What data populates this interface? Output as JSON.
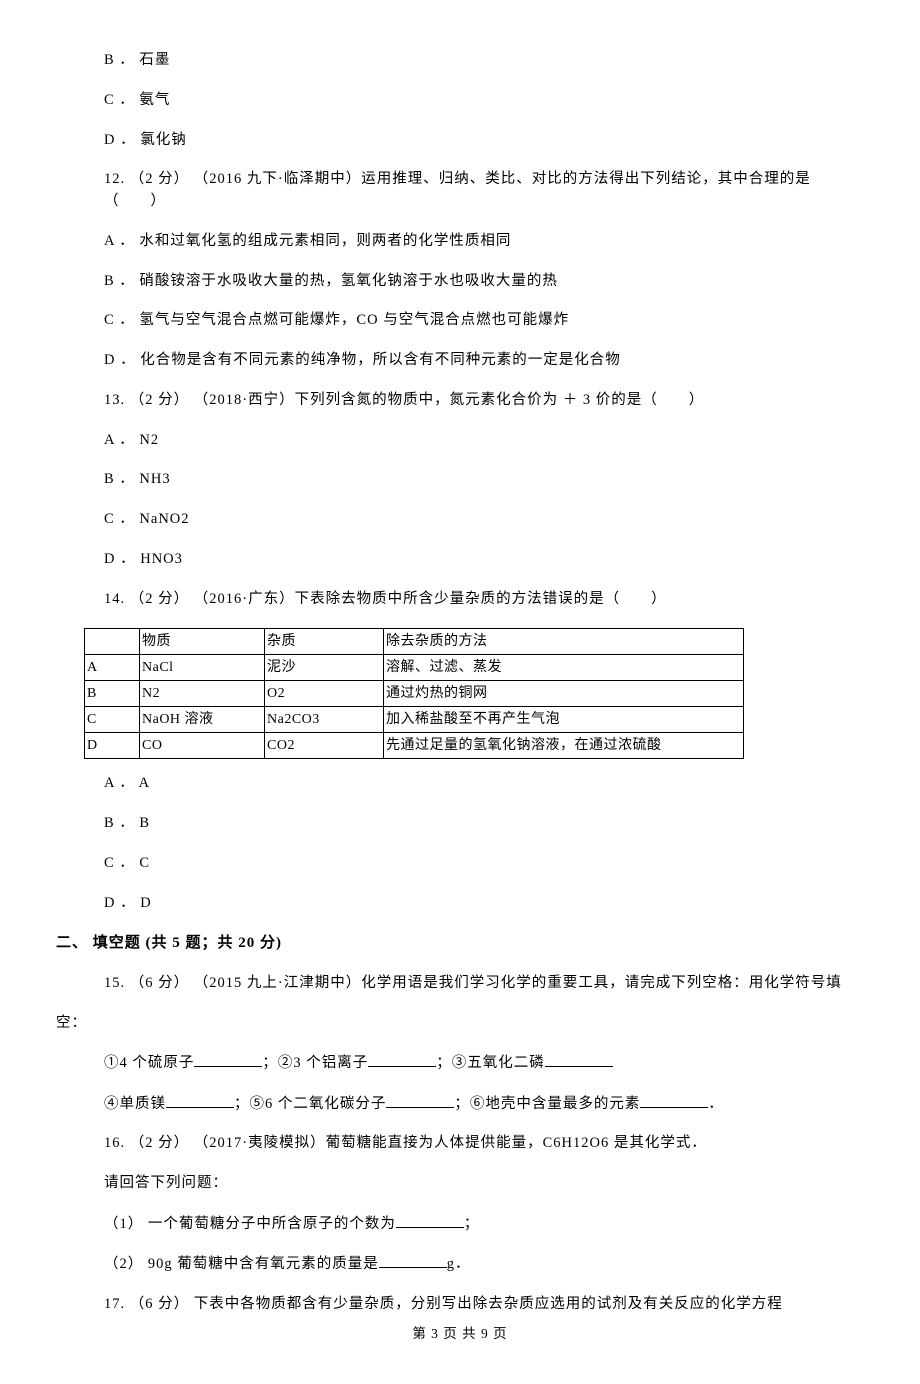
{
  "q11": {
    "opt_b": "B ． 石墨",
    "opt_c": "C ． 氨气",
    "opt_d": "D ． 氯化钠"
  },
  "q12": {
    "stem": "12.  （2 分） （2016 九下·临泽期中）运用推理、归纳、类比、对比的方法得出下列结论，其中合理的是（　　）",
    "opt_a": "A ． 水和过氧化氢的组成元素相同，则两者的化学性质相同",
    "opt_b": "B ． 硝酸铵溶于水吸收大量的热，氢氧化钠溶于水也吸收大量的热",
    "opt_c": "C ． 氢气与空气混合点燃可能爆炸，CO 与空气混合点燃也可能爆炸",
    "opt_d": "D ． 化合物是含有不同元素的纯净物，所以含有不同种元素的一定是化合物"
  },
  "q13": {
    "stem": "13.  （2 分） （2018·西宁）下列列含氮的物质中，氮元素化合价为 ＋ 3 价的是（　　）",
    "opt_a": "A ． N2",
    "opt_b": "B ． NH3",
    "opt_c": "C ． NaNO2",
    "opt_d": "D ． HNO3"
  },
  "q14": {
    "stem": "14.  （2 分） （2016·广东）下表除去物质中所含少量杂质的方法错误的是（　　）",
    "table": {
      "headers": [
        "",
        "物质",
        "杂质",
        "除去杂质的方法"
      ],
      "rows": [
        [
          "A",
          "NaCl",
          "泥沙",
          "溶解、过滤、蒸发"
        ],
        [
          "B",
          "N2",
          "O2",
          "通过灼热的铜网"
        ],
        [
          "C",
          "NaOH 溶液",
          "Na2CO3",
          "加入稀盐酸至不再产生气泡"
        ],
        [
          "D",
          "CO",
          "CO2",
          "先通过足量的氢氧化钠溶液，在通过浓硫酸"
        ]
      ]
    },
    "opt_a": "A ． A",
    "opt_b": "B ． B",
    "opt_c": "C ． C",
    "opt_d": "D ． D"
  },
  "section2": "二、 填空题 (共 5 题；共 20 分)",
  "q15": {
    "stem_a": "15.  （6 分） （2015 九上·江津期中）化学用语是我们学习化学的重要工具，请完成下列空格：用化学符号填",
    "stem_b": "空：",
    "line1_a": "①4 个硫原子",
    "line1_b": "；②3 个铝离子",
    "line1_c": "；③五氧化二磷",
    "line2_a": "④单质镁",
    "line2_b": "；⑤6 个二氧化碳分子",
    "line2_c": "；⑥地壳中含量最多的元素",
    "line2_d": "．",
    "blank_widths": {
      "b1": 68,
      "b2": 68,
      "b3": 68,
      "b4": 68,
      "b5": 68,
      "b6": 68
    }
  },
  "q16": {
    "stem": "16.  （2 分） （2017·夷陵模拟）葡萄糖能直接为人体提供能量，C6H12O6 是其化学式．",
    "prompt": "请回答下列问题：",
    "p1_a": "（1） 一个葡萄糖分子中所含原子的个数为",
    "p1_b": "；",
    "p2_a": "（2） 90g 葡萄糖中含有氧元素的质量是",
    "p2_b": "g．",
    "blank_width": 68
  },
  "q17": {
    "stem": "17.  （6 分） 下表中各物质都含有少量杂质，分别写出除去杂质应选用的试剂及有关反应的化学方程"
  },
  "footer": "第 3 页 共 9 页"
}
